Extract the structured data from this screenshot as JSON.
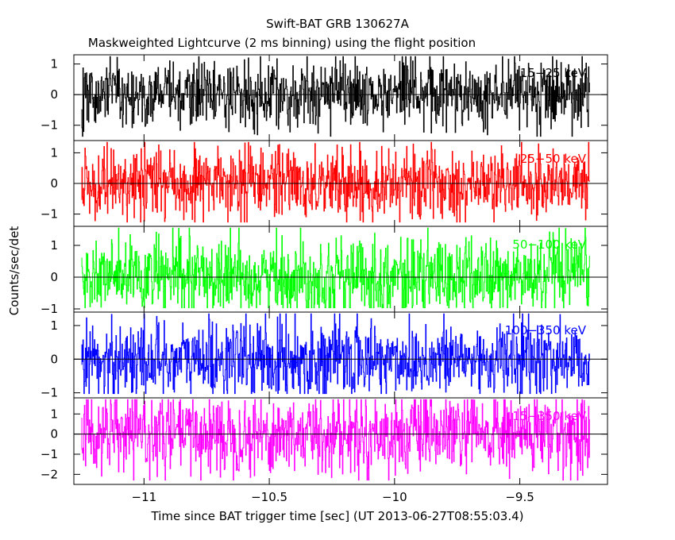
{
  "chart_data": {
    "type": "line",
    "title": "Swift-BAT GRB 130627A",
    "subtitle": "Maskweighted Lightcurve (2 ms binning) using the flight position",
    "xlabel": "Time since BAT trigger time [sec] (UT 2013-06-27T08:55:03.4)",
    "ylabel": "Counts/sec/det",
    "xlim": [
      -11.28,
      -9.15
    ],
    "x_ticks": [
      {
        "value": -11,
        "label": "−11"
      },
      {
        "value": -10.5,
        "label": "−10.5"
      },
      {
        "value": -10,
        "label": "−10"
      },
      {
        "value": -9.5,
        "label": "−9.5"
      }
    ],
    "grid": false,
    "series_time_range": [
      -11.25,
      -9.22
    ],
    "bin_size_sec": 0.002,
    "panels": [
      {
        "name": "15−25 keV",
        "color": "#000000",
        "ylim": [
          -1.5,
          1.3
        ],
        "yticks": [
          -1,
          0,
          1
        ],
        "tick_labels": [
          "−1",
          "0",
          "1"
        ],
        "amplitude": 1.0
      },
      {
        "name": "25−50 keV",
        "color": "#ff0000",
        "ylim": [
          -1.4,
          1.4
        ],
        "yticks": [
          -1,
          0,
          1
        ],
        "tick_labels": [
          "−1",
          "0",
          "1"
        ],
        "amplitude": 1.05
      },
      {
        "name": "50−100 keV",
        "color": "#00ff00",
        "ylim": [
          -1.1,
          1.6
        ],
        "yticks": [
          -1,
          0,
          1
        ],
        "tick_labels": [
          "−1",
          "0",
          "1"
        ],
        "amplitude": 1.15
      },
      {
        "name": "100−350 keV",
        "color": "#0000ff",
        "ylim": [
          -1.15,
          1.4
        ],
        "yticks": [
          -1,
          0,
          1
        ],
        "tick_labels": [
          "−1",
          "0",
          "1"
        ],
        "amplitude": 1.05
      },
      {
        "name": "15−350 keV",
        "color": "#ff00ff",
        "ylim": [
          -2.5,
          1.8
        ],
        "yticks": [
          -2,
          -1,
          0,
          1
        ],
        "tick_labels": [
          "−2",
          "−1",
          "0",
          "1"
        ],
        "amplitude": 1.8
      }
    ]
  }
}
